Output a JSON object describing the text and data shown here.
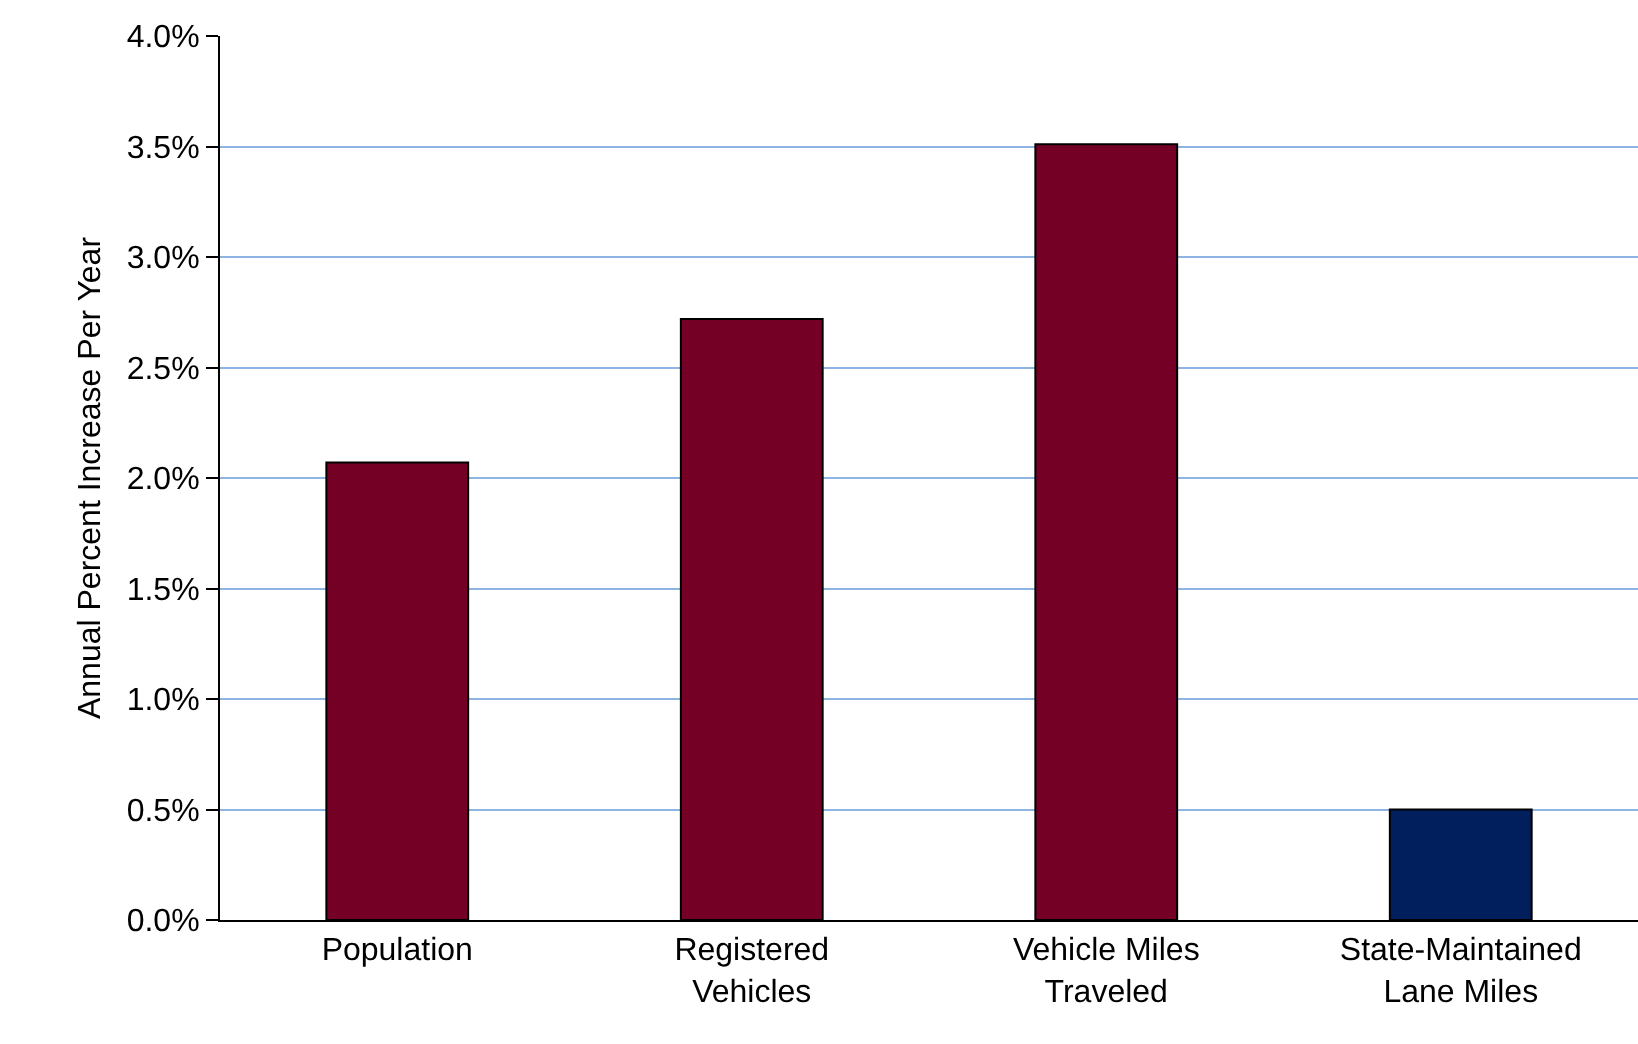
{
  "chart_data": {
    "type": "bar",
    "ylabel": "Annual Percent Increase Per Year",
    "categories": [
      "Population",
      "Registered\nVehicles",
      "Vehicle Miles\nTraveled",
      "State-Maintained\nLane Miles"
    ],
    "values": [
      2.07,
      2.72,
      3.51,
      0.5
    ],
    "colors": [
      "#750026",
      "#750026",
      "#750026",
      "#001f5c"
    ],
    "ylim": [
      0,
      4
    ],
    "yticks": [
      {
        "value": 0,
        "label": "0.0%"
      },
      {
        "value": 0.5,
        "label": "0.5%"
      },
      {
        "value": 1,
        "label": "1.0%"
      },
      {
        "value": 1.5,
        "label": "1.5%"
      },
      {
        "value": 2,
        "label": "2.0%"
      },
      {
        "value": 2.5,
        "label": "2.5%"
      },
      {
        "value": 3,
        "label": "3.0%"
      },
      {
        "value": 3.5,
        "label": "3.5%"
      },
      {
        "value": 4,
        "label": "4.0%"
      }
    ],
    "grid": "y"
  }
}
